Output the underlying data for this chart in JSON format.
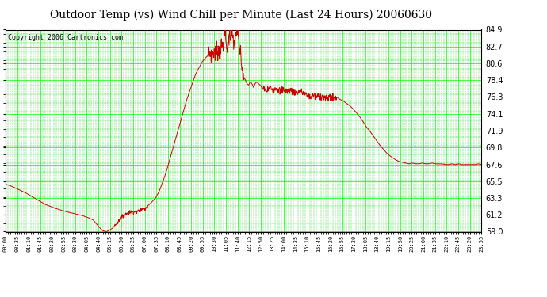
{
  "title": "Outdoor Temp (vs) Wind Chill per Minute (Last 24 Hours) 20060630",
  "copyright": "Copyright 2006 Cartronics.com",
  "yticks": [
    59.0,
    61.2,
    63.3,
    65.5,
    67.6,
    69.8,
    71.9,
    74.1,
    76.3,
    78.4,
    80.6,
    82.7,
    84.9
  ],
  "ymin": 59.0,
  "ymax": 84.9,
  "background_color": "#ffffff",
  "plot_bg_color": "#ffffff",
  "grid_major_color": "#00ff00",
  "grid_minor_color": "#00cc00",
  "line_color": "#cc0000",
  "title_fontsize": 10,
  "copyright_fontsize": 6,
  "xtick_labels": [
    "00:00",
    "00:35",
    "01:10",
    "01:45",
    "02:20",
    "02:55",
    "03:30",
    "04:05",
    "04:40",
    "05:15",
    "05:50",
    "06:25",
    "07:00",
    "07:35",
    "08:10",
    "08:45",
    "09:20",
    "09:55",
    "10:30",
    "11:05",
    "11:40",
    "12:15",
    "12:50",
    "13:25",
    "14:00",
    "14:35",
    "15:10",
    "15:45",
    "16:20",
    "16:55",
    "17:30",
    "18:05",
    "18:40",
    "19:15",
    "19:50",
    "20:25",
    "21:00",
    "21:35",
    "22:10",
    "22:45",
    "23:20",
    "23:55"
  ],
  "keypoints": [
    [
      0,
      65.1
    ],
    [
      20,
      64.8
    ],
    [
      40,
      64.4
    ],
    [
      60,
      64.0
    ],
    [
      80,
      63.5
    ],
    [
      100,
      63.0
    ],
    [
      120,
      62.5
    ],
    [
      150,
      62.0
    ],
    [
      180,
      61.6
    ],
    [
      210,
      61.3
    ],
    [
      230,
      61.1
    ],
    [
      250,
      60.8
    ],
    [
      265,
      60.5
    ],
    [
      275,
      60.0
    ],
    [
      285,
      59.5
    ],
    [
      295,
      59.1
    ],
    [
      305,
      59.0
    ],
    [
      315,
      59.2
    ],
    [
      325,
      59.5
    ],
    [
      335,
      60.0
    ],
    [
      345,
      60.5
    ],
    [
      355,
      61.0
    ],
    [
      365,
      61.3
    ],
    [
      375,
      61.5
    ],
    [
      385,
      61.6
    ],
    [
      395,
      61.5
    ],
    [
      405,
      61.7
    ],
    [
      415,
      61.9
    ],
    [
      425,
      62.1
    ],
    [
      435,
      62.5
    ],
    [
      445,
      62.9
    ],
    [
      455,
      63.4
    ],
    [
      465,
      64.2
    ],
    [
      475,
      65.3
    ],
    [
      485,
      66.5
    ],
    [
      495,
      68.0
    ],
    [
      505,
      69.5
    ],
    [
      515,
      71.0
    ],
    [
      525,
      72.5
    ],
    [
      535,
      74.0
    ],
    [
      545,
      75.5
    ],
    [
      555,
      76.8
    ],
    [
      565,
      78.0
    ],
    [
      575,
      79.2
    ],
    [
      585,
      80.0
    ],
    [
      595,
      80.8
    ],
    [
      605,
      81.3
    ],
    [
      615,
      81.7
    ],
    [
      620,
      82.0
    ],
    [
      625,
      81.5
    ],
    [
      630,
      82.2
    ],
    [
      635,
      81.8
    ],
    [
      640,
      82.5
    ],
    [
      645,
      82.0
    ],
    [
      650,
      82.5
    ],
    [
      655,
      82.8
    ],
    [
      660,
      83.2
    ],
    [
      663,
      84.9
    ],
    [
      666,
      83.5
    ],
    [
      669,
      82.5
    ],
    [
      672,
      83.0
    ],
    [
      675,
      83.8
    ],
    [
      678,
      84.5
    ],
    [
      681,
      84.2
    ],
    [
      684,
      84.9
    ],
    [
      687,
      83.8
    ],
    [
      690,
      82.5
    ],
    [
      693,
      83.5
    ],
    [
      696,
      84.0
    ],
    [
      699,
      84.9
    ],
    [
      702,
      84.2
    ],
    [
      705,
      83.5
    ],
    [
      708,
      82.5
    ],
    [
      711,
      81.5
    ],
    [
      714,
      80.5
    ],
    [
      717,
      79.5
    ],
    [
      720,
      78.8
    ],
    [
      725,
      78.5
    ],
    [
      730,
      78.0
    ],
    [
      735,
      77.8
    ],
    [
      740,
      78.2
    ],
    [
      745,
      78.0
    ],
    [
      750,
      77.5
    ],
    [
      755,
      78.0
    ],
    [
      760,
      78.2
    ],
    [
      765,
      78.0
    ],
    [
      770,
      77.8
    ],
    [
      775,
      77.5
    ],
    [
      780,
      77.2
    ],
    [
      790,
      77.0
    ],
    [
      800,
      77.5
    ],
    [
      810,
      77.2
    ],
    [
      820,
      77.5
    ],
    [
      830,
      77.0
    ],
    [
      840,
      77.3
    ],
    [
      850,
      77.0
    ],
    [
      860,
      77.2
    ],
    [
      870,
      77.0
    ],
    [
      880,
      76.8
    ],
    [
      890,
      77.0
    ],
    [
      900,
      76.8
    ],
    [
      910,
      76.5
    ],
    [
      920,
      76.3
    ],
    [
      930,
      76.5
    ],
    [
      940,
      76.3
    ],
    [
      950,
      76.5
    ],
    [
      960,
      76.3
    ],
    [
      970,
      76.0
    ],
    [
      980,
      76.3
    ],
    [
      990,
      76.0
    ],
    [
      1000,
      76.3
    ],
    [
      1010,
      76.0
    ],
    [
      1020,
      75.8
    ],
    [
      1030,
      75.5
    ],
    [
      1040,
      75.2
    ],
    [
      1050,
      74.8
    ],
    [
      1060,
      74.3
    ],
    [
      1070,
      73.8
    ],
    [
      1080,
      73.2
    ],
    [
      1090,
      72.5
    ],
    [
      1100,
      72.0
    ],
    [
      1110,
      71.4
    ],
    [
      1120,
      70.8
    ],
    [
      1130,
      70.2
    ],
    [
      1140,
      69.7
    ],
    [
      1150,
      69.2
    ],
    [
      1160,
      68.8
    ],
    [
      1170,
      68.5
    ],
    [
      1180,
      68.2
    ],
    [
      1190,
      68.0
    ],
    [
      1200,
      67.9
    ],
    [
      1210,
      67.8
    ],
    [
      1220,
      67.7
    ],
    [
      1230,
      67.8
    ],
    [
      1240,
      67.7
    ],
    [
      1250,
      67.7
    ],
    [
      1260,
      67.8
    ],
    [
      1270,
      67.7
    ],
    [
      1280,
      67.7
    ],
    [
      1290,
      67.8
    ],
    [
      1300,
      67.7
    ],
    [
      1310,
      67.7
    ],
    [
      1320,
      67.7
    ],
    [
      1330,
      67.6
    ],
    [
      1340,
      67.6
    ],
    [
      1350,
      67.7
    ],
    [
      1360,
      67.6
    ],
    [
      1370,
      67.7
    ],
    [
      1380,
      67.6
    ],
    [
      1390,
      67.6
    ],
    [
      1400,
      67.6
    ],
    [
      1410,
      67.6
    ],
    [
      1420,
      67.6
    ],
    [
      1430,
      67.7
    ],
    [
      1439,
      67.6
    ]
  ]
}
